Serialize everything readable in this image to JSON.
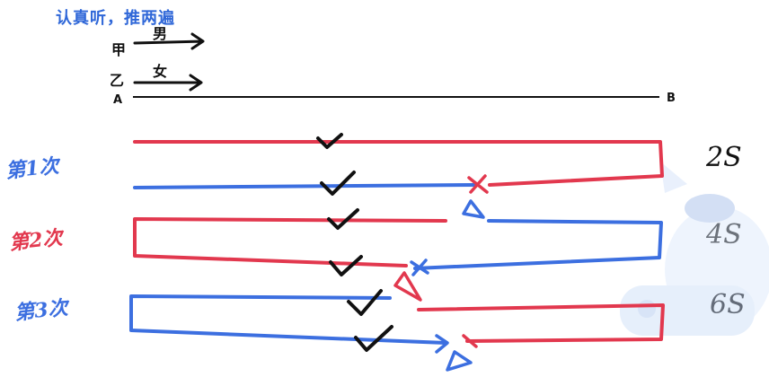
{
  "title": "认真听，推两遍",
  "points": {
    "a": "A",
    "b": "B"
  },
  "walkers": {
    "top_chars": [
      "男",
      "甲"
    ],
    "bottom_chars": [
      "女",
      "乙"
    ]
  },
  "rounds": [
    {
      "label": "第1次",
      "time": "2S",
      "start_color": "#e2384e",
      "return_color": "#3c6fe0"
    },
    {
      "label": "第2次",
      "time": "4S",
      "start_color": "#e2384e",
      "return_color": "#3c6fe0"
    },
    {
      "label": "第3次",
      "time": "6S",
      "start_color": "#3c6fe0",
      "return_color": "#e2384e"
    }
  ],
  "colors": {
    "red": "#e2384e",
    "blue": "#3c6fe0",
    "ink": "#111111",
    "title_blue": "#2f67d8",
    "mascot": "#c9dcf7"
  }
}
